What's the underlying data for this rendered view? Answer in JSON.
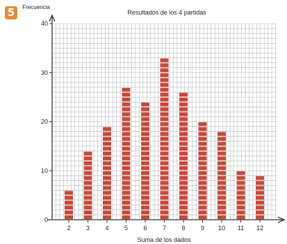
{
  "exercise_number": "5",
  "chart_data": {
    "type": "bar",
    "title": "Resultados de los 4 partidas",
    "xlabel": "Suma de los dados",
    "ylabel": "Frecuencia",
    "categories": [
      "2",
      "3",
      "4",
      "5",
      "6",
      "7",
      "8",
      "9",
      "10",
      "11",
      "12"
    ],
    "values": [
      6,
      14,
      19,
      27,
      24,
      33,
      26,
      20,
      18,
      10,
      9
    ],
    "ylim": [
      0,
      40
    ],
    "yticks": [
      0,
      10,
      20,
      30,
      40
    ],
    "grid": true,
    "colors": {
      "bar": "#c8483a",
      "bar_stripe": "#ffffff",
      "grid": "#b8b8b8",
      "axis": "#333333",
      "badge": "#e8893a"
    }
  }
}
